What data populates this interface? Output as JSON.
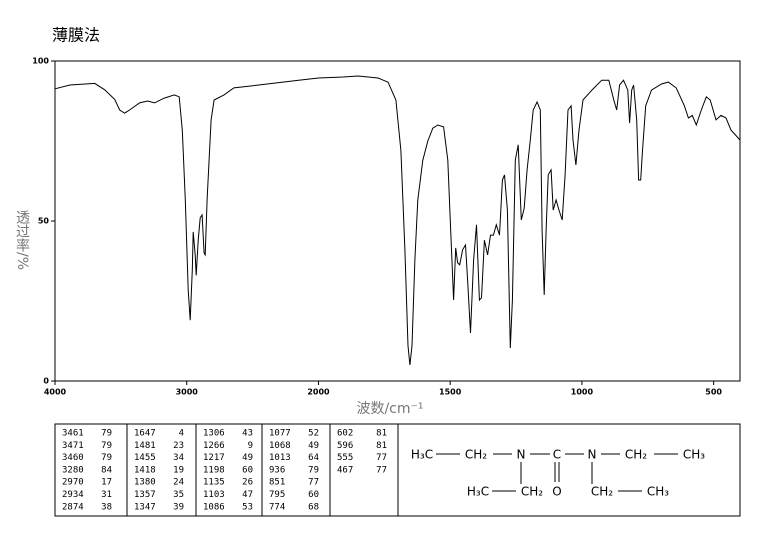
{
  "chart_data": {
    "type": "line",
    "title": "薄膜法",
    "xlabel": "波数/cm⁻¹",
    "ylabel": "透过率/%",
    "xlim": [
      4000,
      400
    ],
    "ylim": [
      0,
      100
    ],
    "xticks": [
      4000,
      3000,
      2000,
      1500,
      1000,
      500
    ],
    "yticks": [
      0,
      50,
      100
    ],
    "series": [
      {
        "color": "#000000",
        "x": [
          4000,
          3887,
          3698,
          3623,
          3547,
          3509,
          3472,
          3434,
          3358,
          3298,
          3245,
          3170,
          3094,
          3057,
          3034,
          3011,
          2989,
          2974,
          2958,
          2951,
          2936,
          2928,
          2913,
          2898,
          2883,
          2868,
          2860,
          2845,
          2815,
          2792,
          2717,
          2642,
          2453,
          2151,
          2000,
          1906,
          1849,
          1774,
          1736,
          1706,
          1687,
          1672,
          1660,
          1653,
          1645,
          1634,
          1623,
          1604,
          1585,
          1566,
          1547,
          1525,
          1509,
          1498,
          1487,
          1479,
          1472,
          1464,
          1453,
          1442,
          1434,
          1423,
          1411,
          1400,
          1389,
          1381,
          1370,
          1358,
          1347,
          1336,
          1325,
          1313,
          1302,
          1294,
          1283,
          1272,
          1264,
          1253,
          1242,
          1230,
          1219,
          1208,
          1196,
          1185,
          1170,
          1158,
          1151,
          1143,
          1136,
          1128,
          1117,
          1109,
          1098,
          1087,
          1075,
          1064,
          1053,
          1041,
          1034,
          1023,
          1011,
          996,
          962,
          925,
          898,
          879,
          868,
          857,
          842,
          826,
          819,
          811,
          804,
          792,
          785,
          777,
          770,
          758,
          736,
          698,
          672,
          642,
          611,
          596,
          581,
          566,
          547,
          528,
          513,
          491,
          472,
          453,
          434,
          400
        ],
        "values": [
          91.3,
          92.5,
          93,
          91,
          88,
          84.7,
          83.7,
          84.7,
          86.9,
          87.5,
          86.9,
          88.4,
          89.4,
          88.8,
          78.4,
          56.6,
          28.4,
          19,
          34.7,
          46.6,
          39.4,
          33,
          44,
          51,
          51.9,
          40,
          39.4,
          56.6,
          81.6,
          87.8,
          89.4,
          91.6,
          92.5,
          94,
          94.7,
          95,
          95.3,
          94.7,
          93.4,
          87.8,
          72,
          41,
          11,
          5,
          11,
          38,
          56.6,
          69,
          75,
          79,
          80,
          79.4,
          69,
          47,
          25.3,
          41.6,
          37,
          36.3,
          41,
          42.5,
          31.6,
          15,
          37.8,
          48.8,
          25.3,
          26,
          44,
          39.4,
          45.6,
          45.6,
          48.8,
          45.6,
          62.8,
          64.4,
          53.4,
          10.3,
          25.3,
          69,
          73.8,
          50.3,
          54,
          66,
          75.3,
          84.7,
          87.2,
          84.7,
          47,
          26.9,
          47,
          64.4,
          66,
          53.4,
          56.6,
          53.4,
          50.3,
          64.4,
          84.7,
          86,
          75.3,
          67.5,
          78.4,
          87.8,
          90.9,
          94,
          94,
          87.8,
          84.7,
          92.5,
          94,
          90.9,
          80.6,
          90.9,
          92.5,
          81.6,
          62.8,
          62.8,
          72,
          86,
          90.9,
          92.8,
          93.4,
          91.6,
          86,
          82.2,
          83,
          80,
          84.7,
          88.8,
          87.8,
          81.6,
          83,
          82.2,
          78.4,
          75.3
        ]
      }
    ]
  },
  "peak_table": [
    [
      [
        3461,
        79
      ],
      [
        3471,
        79
      ],
      [
        3460,
        79
      ],
      [
        3280,
        84
      ],
      [
        2970,
        17
      ],
      [
        2934,
        31
      ],
      [
        2874,
        38
      ]
    ],
    [
      [
        1647,
        4
      ],
      [
        1481,
        23
      ],
      [
        1455,
        34
      ],
      [
        1418,
        19
      ],
      [
        1380,
        24
      ],
      [
        1357,
        35
      ],
      [
        1347,
        39
      ]
    ],
    [
      [
        1306,
        43
      ],
      [
        1266,
        9
      ],
      [
        1217,
        49
      ],
      [
        1198,
        60
      ],
      [
        1135,
        26
      ],
      [
        1103,
        47
      ],
      [
        1086,
        53
      ]
    ],
    [
      [
        1077,
        52
      ],
      [
        1068,
        49
      ],
      [
        1013,
        64
      ],
      [
        936,
        79
      ],
      [
        851,
        77
      ],
      [
        795,
        60
      ],
      [
        774,
        68
      ]
    ],
    [
      [
        602,
        81
      ],
      [
        596,
        81
      ],
      [
        555,
        77
      ],
      [
        467,
        77
      ]
    ]
  ],
  "structure": {
    "row1": [
      "H₃C",
      "CH₂",
      "N",
      "C",
      "N",
      "CH₂",
      "CH₃"
    ],
    "row2": [
      "H₃C",
      "CH₂",
      "O",
      "CH₂",
      "CH₃"
    ]
  }
}
